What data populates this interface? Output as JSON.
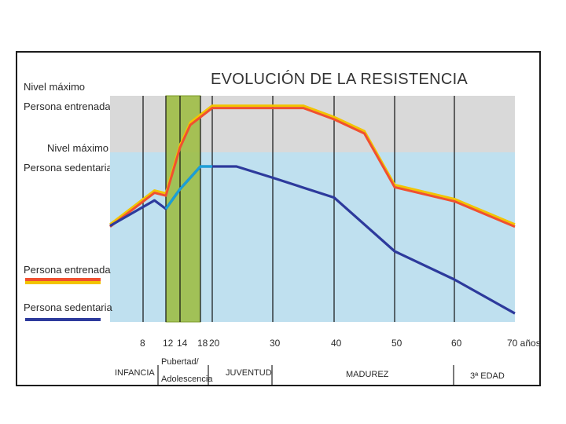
{
  "chart_data": {
    "type": "line",
    "title": "EVOLUCIÓN DE LA RESISTENCIA",
    "x_unit_label": "70 años",
    "x_ticks": [
      8,
      12,
      14,
      18,
      20,
      30,
      40,
      50,
      60,
      70
    ],
    "x_tick_labels": [
      "8",
      "12",
      "14",
      "18",
      "20",
      "30",
      "40",
      "50",
      "60",
      "70 años"
    ],
    "level_labels": [
      {
        "line1": "Nivel máximo",
        "line2": "Persona entrenada"
      },
      {
        "line1": "Nivel máximo",
        "line2": "Persona sedentaria"
      }
    ],
    "stages": [
      {
        "label": "INFANCIA",
        "from": 3,
        "to": 12
      },
      {
        "label": "Pubertad/",
        "label2": "Adolescencia",
        "from": 12,
        "to": 20
      },
      {
        "label": "JUVENTUD",
        "from": 20,
        "to": 30
      },
      {
        "label": "MADUREZ",
        "from": 30,
        "to": 60
      },
      {
        "label": "3ª EDAD",
        "from": 60,
        "to": 70
      }
    ],
    "highlight_range": [
      12,
      18
    ],
    "legend": [
      {
        "name": "Persona entrenada",
        "colors": [
          "#f2c400",
          "#f05030"
        ]
      },
      {
        "name": "Persona sedentaria",
        "colors": [
          "#2d3a9c"
        ]
      }
    ],
    "series": [
      {
        "name": "Persona entrenada",
        "points": [
          [
            3,
            34
          ],
          [
            10,
            46
          ],
          [
            12,
            45
          ],
          [
            14,
            62
          ],
          [
            16,
            70
          ],
          [
            20,
            76
          ],
          [
            24,
            76
          ],
          [
            30,
            76
          ],
          [
            35,
            76
          ],
          [
            40,
            72
          ],
          [
            45,
            67
          ],
          [
            50,
            48
          ],
          [
            60,
            43
          ],
          [
            70,
            34
          ]
        ]
      },
      {
        "name": "Persona sedentaria",
        "points": [
          [
            3,
            34
          ],
          [
            10,
            43
          ],
          [
            12,
            40
          ],
          [
            14,
            47
          ],
          [
            16,
            51
          ],
          [
            18,
            55
          ],
          [
            20,
            55
          ],
          [
            24,
            55
          ],
          [
            30,
            51
          ],
          [
            40,
            44
          ],
          [
            50,
            25
          ],
          [
            60,
            15
          ],
          [
            70,
            3
          ]
        ]
      }
    ],
    "y_levels": {
      "trained_max": 80,
      "sedentary_max": 60
    },
    "ylim": [
      0,
      80
    ],
    "colors": {
      "trained_band": "#d9d9d9",
      "sedentary_band": "#bfe0ef",
      "highlight": "#9bbb3c",
      "grid": "#111111"
    }
  }
}
